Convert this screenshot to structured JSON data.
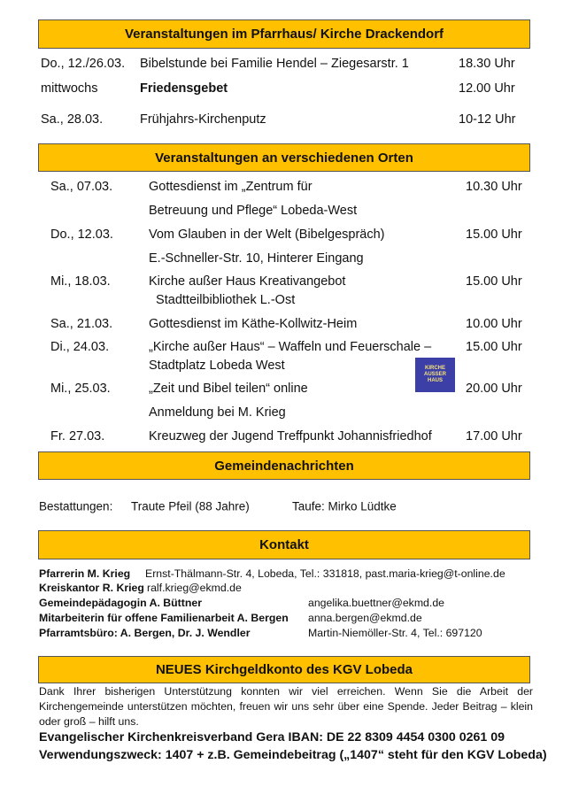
{
  "section1": {
    "title": "Veranstaltungen im Pfarrhaus/ Kirche Drackendorf",
    "rows": [
      {
        "date": "Do., 12./26.03.",
        "event": "Bibelstunde bei Familie Hendel – Ziegesarstr. 1",
        "time": "18.30 Uhr"
      },
      {
        "date": "mittwochs",
        "event": "Friedensgebet",
        "time": "12.00 Uhr"
      },
      {
        "date": "Sa., 28.03.",
        "event": "Frühjahrs-Kirchenputz",
        "time": "10-12 Uhr"
      }
    ]
  },
  "section2": {
    "title": "Veranstaltungen an verschiedenen Orten",
    "rows": [
      {
        "date": "Sa., 07.03.",
        "event": "Gottesdienst im „Zentrum für",
        "time": "10.30 Uhr"
      },
      {
        "date": "",
        "event": "Betreuung und Pflege“ Lobeda-West",
        "time": ""
      },
      {
        "date": "Do., 12.03.",
        "event": "Vom Glauben in der Welt (Bibelgespräch)",
        "time": "15.00 Uhr"
      },
      {
        "date": "",
        "event": "E.-Schneller-Str. 10, Hinterer Eingang",
        "time": ""
      },
      {
        "date": "Mi., 18.03.",
        "event": "Kirche außer Haus Kreativangebot",
        "time": "15.00 Uhr"
      },
      {
        "date": "",
        "event": "  Stadtteilbibliothek L.-Ost",
        "time": ""
      },
      {
        "date": "Sa., 21.03.",
        "event": "Gottesdienst im Käthe-Kollwitz-Heim",
        "time": "10.00 Uhr"
      },
      {
        "date": "Di., 24.03.",
        "event": "„Kirche außer Haus“ – Waffeln und Feuerschale –",
        "time": "15.00 Uhr"
      },
      {
        "date": "",
        "event": "Stadtplatz Lobeda West",
        "time": ""
      },
      {
        "date": "Mi., 25.03.",
        "event": "„Zeit und Bibel teilen“ online",
        "time": "20.00 Uhr"
      },
      {
        "date": "",
        "event": "Anmeldung bei M. Krieg",
        "time": ""
      },
      {
        "date": "Fr. 27.03.",
        "event": "Kreuzweg der Jugend Treffpunkt Johannisfriedhof",
        "time": "17.00 Uhr"
      }
    ],
    "logo_text": "KIRCHE AUSSER HAUS"
  },
  "section3": {
    "title": "Gemeindenachrichten",
    "burials_label": "Bestattungen:",
    "burials": "Traute Pfeil (88 Jahre)",
    "baptism": "Taufe: Mirko Lüdtke"
  },
  "section4": {
    "title": "Kontakt",
    "rows": [
      {
        "name": "Pfarrerin M. Krieg",
        "info": "Ernst-Thälmann-Str. 4, Lobeda, Tel.: 331818, past.maria-krieg@t-online.de"
      },
      {
        "name": "Kreiskantor R. Krieg",
        "info": "ralf.krieg@ekmd.de"
      },
      {
        "name": "Gemeindepädagogin A. Büttner",
        "info": "angelika.buettner@ekmd.de"
      },
      {
        "name": "Mitarbeiterin für offene Familienarbeit A. Bergen",
        "info": "anna.bergen@ekmd.de"
      },
      {
        "name": "Pfarramtsbüro: A. Bergen, Dr. J. Wendler",
        "info": "Martin-Niemöller-Str. 4, Tel.: 697120"
      }
    ]
  },
  "section5": {
    "title": "NEUES Kirchgeldkonto des KGV Lobeda",
    "text": "Dank Ihrer bisherigen Unterstützung konnten wir viel erreichen. Wenn Sie die Arbeit der Kirchengemeinde unterstützen möchten, freuen wir uns sehr über eine Spende. Jeder Beitrag – klein oder groß – hilft uns.",
    "iban_line": "Evangelischer Kirchenkreisverband Gera IBAN: DE 22 8309 4454 0300 0261 09",
    "purpose_line": "Verwendungszweck: 1407 + z.B. Gemeindebeitrag („1407“ steht für den KGV Lobeda)"
  }
}
